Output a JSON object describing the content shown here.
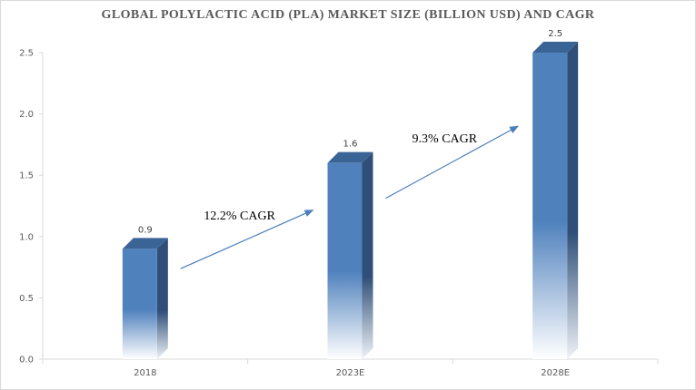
{
  "chart_data": {
    "type": "bar",
    "title": "GLOBAL POLYLACTIC ACID (PLA) MARKET SIZE (BILLION USD) AND CAGR",
    "categories": [
      "2018",
      "2023E",
      "2028E"
    ],
    "values": [
      0.9,
      1.6,
      2.5
    ],
    "data_labels": [
      "0.9",
      "1.6",
      "2.5"
    ],
    "ylim": [
      0,
      2.5
    ],
    "yticks": [
      "0.0",
      "0.5",
      "1.0",
      "1.5",
      "2.0",
      "2.5"
    ],
    "ytick_values": [
      0,
      0.5,
      1.0,
      1.5,
      2.0,
      2.5
    ],
    "xlabel": "",
    "ylabel": "",
    "grid": false,
    "legend": "none",
    "annotations": [
      {
        "text": "12.2% CAGR",
        "from": "2018",
        "to": "2023E"
      },
      {
        "text": "9.3% CAGR",
        "from": "2023E",
        "to": "2028E"
      }
    ],
    "colors": {
      "bar_front": "#4f81bd",
      "bar_side": "#2f4f78",
      "bar_top": "#3b6496",
      "arrow": "#4a7ebb",
      "axis": "#d9d9d9"
    }
  }
}
